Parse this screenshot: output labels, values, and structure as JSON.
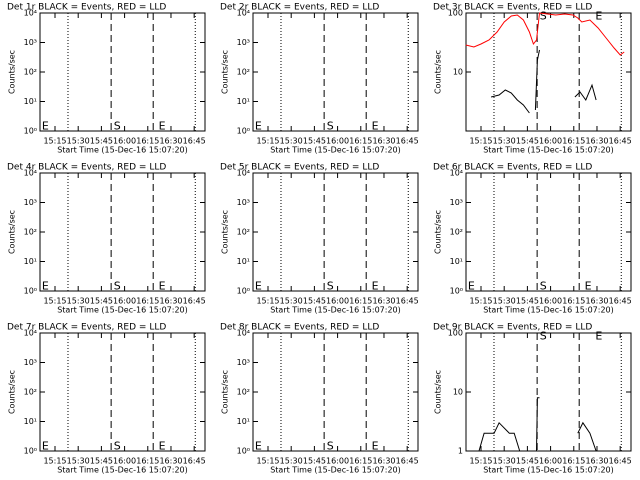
{
  "chart_data": [
    {
      "type": "line",
      "title": "Det 1r BLACK = Events, RED = LLD",
      "x_label": "Start Time (15-Dec-16 15:07:20)",
      "y_label": "Counts/sec",
      "ylog": true,
      "grid": false,
      "xlim": [
        905.3,
        1012
      ],
      "xticks": [
        {
          "value": 915,
          "label": "15:15"
        },
        {
          "value": 930,
          "label": "15:30"
        },
        {
          "value": 945,
          "label": "15:45"
        },
        {
          "value": 960,
          "label": "16:00"
        },
        {
          "value": 975,
          "label": "16:15"
        },
        {
          "value": 990,
          "label": "16:30"
        },
        {
          "value": 1005,
          "label": "16:45"
        }
      ],
      "ylim": [
        1,
        10000
      ],
      "yticks": [
        {
          "value": 1,
          "label": "10⁰"
        },
        {
          "value": 10,
          "label": "10¹"
        },
        {
          "value": 100,
          "label": "10²"
        },
        {
          "value": 1000,
          "label": "10³"
        },
        {
          "value": 10000,
          "label": "10⁴"
        }
      ],
      "dotted_lines": [
        923.4,
        1005.7
      ],
      "dashed_lines": [
        951.3,
        978.5
      ],
      "annotations": [
        {
          "text": "E",
          "x": 906.5,
          "y": 1.4
        },
        {
          "text": "S",
          "x": 953,
          "y": 1.4
        },
        {
          "text": "E",
          "x": 982,
          "y": 1.4
        }
      ],
      "series": []
    },
    {
      "type": "line",
      "title": "Det 2r BLACK = Events, RED = LLD",
      "x_label": "Start Time (15-Dec-16 15:07:20)",
      "y_label": "Counts/sec",
      "ylog": true,
      "grid": false,
      "xlim": [
        905.3,
        1012
      ],
      "xticks": [
        {
          "value": 915,
          "label": "15:15"
        },
        {
          "value": 930,
          "label": "15:30"
        },
        {
          "value": 945,
          "label": "15:45"
        },
        {
          "value": 960,
          "label": "16:00"
        },
        {
          "value": 975,
          "label": "16:15"
        },
        {
          "value": 990,
          "label": "16:30"
        },
        {
          "value": 1005,
          "label": "16:45"
        }
      ],
      "ylim": [
        1,
        10000
      ],
      "yticks": [
        {
          "value": 1,
          "label": "10⁰"
        },
        {
          "value": 10,
          "label": "10¹"
        },
        {
          "value": 100,
          "label": "10²"
        },
        {
          "value": 1000,
          "label": "10³"
        },
        {
          "value": 10000,
          "label": "10⁴"
        }
      ],
      "dotted_lines": [
        923.4,
        1005.7
      ],
      "dashed_lines": [
        951.3,
        978.5
      ],
      "annotations": [
        {
          "text": "E",
          "x": 906.5,
          "y": 1.4
        },
        {
          "text": "S",
          "x": 953,
          "y": 1.4
        },
        {
          "text": "E",
          "x": 982,
          "y": 1.4
        }
      ],
      "series": []
    },
    {
      "type": "line",
      "title": "Det 3r BLACK = Events, RED = LLD",
      "x_label": "Start Time (15-Dec-16 15:07:20)",
      "y_label": "Counts/sec",
      "ylog": true,
      "grid": false,
      "xlim": [
        905.3,
        1012
      ],
      "xticks": [
        {
          "value": 915,
          "label": "15:15"
        },
        {
          "value": 930,
          "label": "15:30"
        },
        {
          "value": 945,
          "label": "15:45"
        },
        {
          "value": 960,
          "label": "16:00"
        },
        {
          "value": 975,
          "label": "16:15"
        },
        {
          "value": 990,
          "label": "16:30"
        },
        {
          "value": 1005,
          "label": "16:45"
        }
      ],
      "ylim": [
        1,
        100
      ],
      "yticks": [
        10,
        100
      ],
      "dotted_lines": [
        923.4,
        1005.7
      ],
      "dashed_lines": [
        951.3,
        978.5
      ],
      "annotations": [
        {
          "text": "S",
          "x": 953,
          "y": 88
        },
        {
          "text": "E",
          "x": 989,
          "y": 88
        }
      ],
      "series": [
        {
          "color": "#ff0000",
          "x": [
            905.2,
            910.4,
            915,
            920.2,
            925.4,
            930,
            934.6,
            938.5,
            942.4,
            946.3,
            948.9,
            950.9,
            952.8,
            958,
            963.3,
            969.1,
            974.4,
            977.6,
            980.2,
            985.4,
            990.7,
            995.9,
            1001.1,
            1005,
            1007.6
          ],
          "values": [
            28.7,
            26.5,
            29.8,
            34.9,
            47.6,
            70.4,
            89,
            92.5,
            76,
            47.6,
            29.8,
            34.9,
            100,
            96,
            92.5,
            96,
            92.5,
            82.3,
            70.4,
            76,
            55.7,
            37.7,
            25.5,
            19.4,
            21.8
          ]
        },
        {
          "color": "#000000",
          "x": [
            921.5,
            926.7,
            930.7,
            934.6,
            938.5,
            942.4,
            946.3,
            null,
            950.2,
            951.5,
            952.8,
            null,
            975.7,
            979,
            982.8,
            986.8,
            989.4
          ],
          "values": [
            3.77,
            4.07,
            4.95,
            4.4,
            3.35,
            2.76,
            2.02,
            null,
            2.27,
            16,
            23.6,
            null,
            3.77,
            4.58,
            3.35,
            6.0,
            3.35
          ]
        }
      ]
    },
    {
      "type": "line",
      "title": "Det 4r BLACK = Events, RED = LLD",
      "x_label": "Start Time (15-Dec-16 15:07:20)",
      "y_label": "Counts/sec",
      "ylog": true,
      "grid": false,
      "xlim": [
        905.3,
        1012
      ],
      "xticks": [
        {
          "value": 915,
          "label": "15:15"
        },
        {
          "value": 930,
          "label": "15:30"
        },
        {
          "value": 945,
          "label": "15:45"
        },
        {
          "value": 960,
          "label": "16:00"
        },
        {
          "value": 975,
          "label": "16:15"
        },
        {
          "value": 990,
          "label": "16:30"
        },
        {
          "value": 1005,
          "label": "16:45"
        }
      ],
      "ylim": [
        1,
        10000
      ],
      "yticks": [
        {
          "value": 1,
          "label": "10⁰"
        },
        {
          "value": 10,
          "label": "10¹"
        },
        {
          "value": 100,
          "label": "10²"
        },
        {
          "value": 1000,
          "label": "10³"
        },
        {
          "value": 10000,
          "label": "10⁴"
        }
      ],
      "dotted_lines": [
        923.4,
        1005.7
      ],
      "dashed_lines": [
        951.3,
        978.5
      ],
      "annotations": [
        {
          "text": "E",
          "x": 906.5,
          "y": 1.4
        },
        {
          "text": "S",
          "x": 953,
          "y": 1.4
        },
        {
          "text": "E",
          "x": 982,
          "y": 1.4
        }
      ],
      "series": []
    },
    {
      "type": "line",
      "title": "Det 5r BLACK = Events, RED = LLD",
      "x_label": "Start Time (15-Dec-16 15:07:20)",
      "y_label": "Counts/sec",
      "ylog": true,
      "grid": false,
      "xlim": [
        905.3,
        1012
      ],
      "xticks": [
        {
          "value": 915,
          "label": "15:15"
        },
        {
          "value": 930,
          "label": "15:30"
        },
        {
          "value": 945,
          "label": "15:45"
        },
        {
          "value": 960,
          "label": "16:00"
        },
        {
          "value": 975,
          "label": "16:15"
        },
        {
          "value": 990,
          "label": "16:30"
        },
        {
          "value": 1005,
          "label": "16:45"
        }
      ],
      "ylim": [
        1,
        10000
      ],
      "yticks": [
        {
          "value": 1,
          "label": "10⁰"
        },
        {
          "value": 10,
          "label": "10¹"
        },
        {
          "value": 100,
          "label": "10²"
        },
        {
          "value": 1000,
          "label": "10³"
        },
        {
          "value": 10000,
          "label": "10⁴"
        }
      ],
      "dotted_lines": [
        923.4,
        1005.7
      ],
      "dashed_lines": [
        951.3,
        978.5
      ],
      "annotations": [
        {
          "text": "E",
          "x": 906.5,
          "y": 1.4
        },
        {
          "text": "S",
          "x": 953,
          "y": 1.4
        },
        {
          "text": "E",
          "x": 982,
          "y": 1.4
        }
      ],
      "series": []
    },
    {
      "type": "line",
      "title": "Det 6r BLACK = Events, RED = LLD",
      "x_label": "Start Time (15-Dec-16 15:07:20)",
      "y_label": "Counts/sec",
      "ylog": true,
      "grid": false,
      "xlim": [
        905.3,
        1012
      ],
      "xticks": [
        {
          "value": 915,
          "label": "15:15"
        },
        {
          "value": 930,
          "label": "15:30"
        },
        {
          "value": 945,
          "label": "15:45"
        },
        {
          "value": 960,
          "label": "16:00"
        },
        {
          "value": 975,
          "label": "16:15"
        },
        {
          "value": 990,
          "label": "16:30"
        },
        {
          "value": 1005,
          "label": "16:45"
        }
      ],
      "ylim": [
        1,
        10000
      ],
      "yticks": [
        {
          "value": 1,
          "label": "10⁰"
        },
        {
          "value": 10,
          "label": "10¹"
        },
        {
          "value": 100,
          "label": "10²"
        },
        {
          "value": 1000,
          "label": "10³"
        },
        {
          "value": 10000,
          "label": "10⁴"
        }
      ],
      "dotted_lines": [
        923.4,
        1005.7
      ],
      "dashed_lines": [
        951.3,
        978.5
      ],
      "annotations": [
        {
          "text": "E",
          "x": 906.5,
          "y": 1.4
        },
        {
          "text": "S",
          "x": 953,
          "y": 1.4
        },
        {
          "text": "E",
          "x": 982,
          "y": 1.4
        }
      ],
      "series": []
    },
    {
      "type": "line",
      "title": "Det 7r BLACK = Events, RED = LLD",
      "x_label": "Start Time (15-Dec-16 15:07:20)",
      "y_label": "Counts/sec",
      "ylog": true,
      "grid": false,
      "xlim": [
        905.3,
        1012
      ],
      "xticks": [
        {
          "value": 915,
          "label": "15:15"
        },
        {
          "value": 930,
          "label": "15:30"
        },
        {
          "value": 945,
          "label": "15:45"
        },
        {
          "value": 960,
          "label": "16:00"
        },
        {
          "value": 975,
          "label": "16:15"
        },
        {
          "value": 990,
          "label": "16:30"
        },
        {
          "value": 1005,
          "label": "16:45"
        }
      ],
      "ylim": [
        1,
        10000
      ],
      "yticks": [
        {
          "value": 1,
          "label": "10⁰"
        },
        {
          "value": 10,
          "label": "10¹"
        },
        {
          "value": 100,
          "label": "10²"
        },
        {
          "value": 1000,
          "label": "10³"
        },
        {
          "value": 10000,
          "label": "10⁴"
        }
      ],
      "dotted_lines": [
        923.4,
        1005.7
      ],
      "dashed_lines": [
        951.3,
        978.5
      ],
      "annotations": [
        {
          "text": "E",
          "x": 906.5,
          "y": 1.4
        },
        {
          "text": "S",
          "x": 953,
          "y": 1.4
        },
        {
          "text": "E",
          "x": 982,
          "y": 1.4
        }
      ],
      "series": []
    },
    {
      "type": "line",
      "title": "Det 8r BLACK = Events, RED = LLD",
      "x_label": "Start Time (15-Dec-16 15:07:20)",
      "y_label": "Counts/sec",
      "ylog": true,
      "grid": false,
      "xlim": [
        905.3,
        1012
      ],
      "xticks": [
        {
          "value": 915,
          "label": "15:15"
        },
        {
          "value": 930,
          "label": "15:30"
        },
        {
          "value": 945,
          "label": "15:45"
        },
        {
          "value": 960,
          "label": "16:00"
        },
        {
          "value": 975,
          "label": "16:15"
        },
        {
          "value": 990,
          "label": "16:30"
        },
        {
          "value": 1005,
          "label": "16:45"
        }
      ],
      "ylim": [
        1,
        10000
      ],
      "yticks": [
        {
          "value": 1,
          "label": "10⁰"
        },
        {
          "value": 10,
          "label": "10¹"
        },
        {
          "value": 100,
          "label": "10²"
        },
        {
          "value": 1000,
          "label": "10³"
        },
        {
          "value": 10000,
          "label": "10⁴"
        }
      ],
      "dotted_lines": [
        923.4,
        1005.7
      ],
      "dashed_lines": [
        951.3,
        978.5
      ],
      "annotations": [
        {
          "text": "E",
          "x": 906.5,
          "y": 1.4
        },
        {
          "text": "S",
          "x": 953,
          "y": 1.4
        },
        {
          "text": "E",
          "x": 982,
          "y": 1.4
        }
      ],
      "series": []
    },
    {
      "type": "line",
      "title": "Det 9r BLACK = Events, RED = LLD",
      "x_label": "Start Time (15-Dec-16 15:07:20)",
      "y_label": "Counts/sec",
      "ylog": true,
      "grid": false,
      "xlim": [
        905.3,
        1012
      ],
      "xticks": [
        {
          "value": 915,
          "label": "15:15"
        },
        {
          "value": 930,
          "label": "15:30"
        },
        {
          "value": 945,
          "label": "15:45"
        },
        {
          "value": 960,
          "label": "16:00"
        },
        {
          "value": 975,
          "label": "16:15"
        },
        {
          "value": 990,
          "label": "16:30"
        },
        {
          "value": 1005,
          "label": "16:45"
        }
      ],
      "ylim": [
        1,
        100
      ],
      "yticks": [
        1,
        10,
        100
      ],
      "dotted_lines": [
        923.4,
        1005.7
      ],
      "dashed_lines": [
        951.3,
        978.5
      ],
      "annotations": [
        {
          "text": "S",
          "x": 953,
          "y": 88
        },
        {
          "text": "E",
          "x": 989,
          "y": 88
        }
      ],
      "series": [
        {
          "color": "#000000",
          "x": [
            913.7,
            917,
            923.5,
            926.7,
            933.3,
            936.5,
            940,
            null,
            950.9,
            951.5,
            952.8,
            null,
            977.6,
            980.9,
            985.4,
            989.4
          ],
          "values": [
            1,
            2,
            2,
            3,
            2,
            2,
            1,
            null,
            1,
            8,
            8,
            null,
            2,
            3,
            2,
            1
          ]
        }
      ]
    }
  ]
}
